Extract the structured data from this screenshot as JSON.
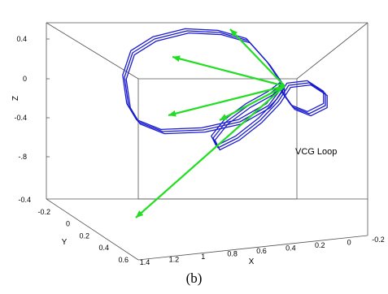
{
  "caption": "(b)",
  "chart_data": {
    "type": "line3d",
    "axes": {
      "xlabel": "X",
      "ylabel": "Y",
      "zlabel": "Z",
      "x_ticks": [
        "1.4",
        "1.2",
        "1",
        "0.8",
        "0.6",
        "0.4",
        "0.2",
        "0",
        "-0.2"
      ],
      "y_ticks": [
        "-0.4",
        "-0.2",
        "0",
        "0.2",
        "0.4",
        "0.6"
      ],
      "z_ticks": [
        "0.4",
        "0",
        "-0.4",
        "-.8"
      ],
      "box": true,
      "grid": false
    },
    "colors": {
      "loop": "#1a1ad0",
      "vectors": "#22dd22",
      "axes": "#555555"
    },
    "annotation": {
      "text": "VCG Loop",
      "target_series": "VCG Loop"
    },
    "series": [
      {
        "name": "VCG Loop",
        "kind": "closed-loop",
        "repeats": 3
      }
    ],
    "vectors": [
      {
        "label": "",
        "tip": "up"
      },
      {
        "label": "",
        "tip": "upper-left"
      },
      {
        "label": "",
        "tip": "left"
      },
      {
        "label": "",
        "tip": "lower-center"
      },
      {
        "label": "",
        "tip": "lower-left"
      }
    ]
  }
}
